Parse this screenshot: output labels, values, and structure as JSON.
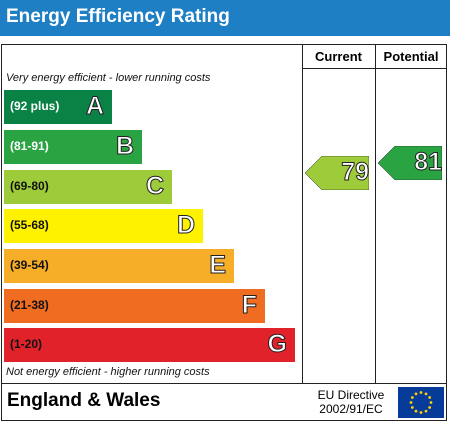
{
  "header": {
    "title": "Energy Efficiency Rating"
  },
  "columns": {
    "current": "Current",
    "potential": "Potential"
  },
  "notes": {
    "top": "Very energy efficient - lower running costs",
    "bottom": "Not energy efficient - higher running costs"
  },
  "bands": [
    {
      "letter": "A",
      "range": "(92 plus)",
      "color": "#0a8245",
      "range_color": "#ffffff"
    },
    {
      "letter": "B",
      "range": "(81-91)",
      "color": "#2aa443",
      "range_color": "#ffffff"
    },
    {
      "letter": "C",
      "range": "(69-80)",
      "color": "#9ecb3a",
      "range_color": "#111111"
    },
    {
      "letter": "D",
      "range": "(55-68)",
      "color": "#fef200",
      "range_color": "#111111"
    },
    {
      "letter": "E",
      "range": "(39-54)",
      "color": "#f6ad28",
      "range_color": "#111111"
    },
    {
      "letter": "F",
      "range": "(21-38)",
      "color": "#ef6c21",
      "range_color": "#111111"
    },
    {
      "letter": "G",
      "range": "(1-20)",
      "color": "#e2222b",
      "range_color": "#111111"
    }
  ],
  "current": {
    "value": "79",
    "color": "#9ecb3a"
  },
  "potential": {
    "value": "81",
    "color": "#2aa443"
  },
  "footer": {
    "region": "England & Wales",
    "directive_line1": "EU Directive",
    "directive_line2": "2002/91/EC"
  },
  "icons": {
    "flag": "eu-flag-icon"
  }
}
